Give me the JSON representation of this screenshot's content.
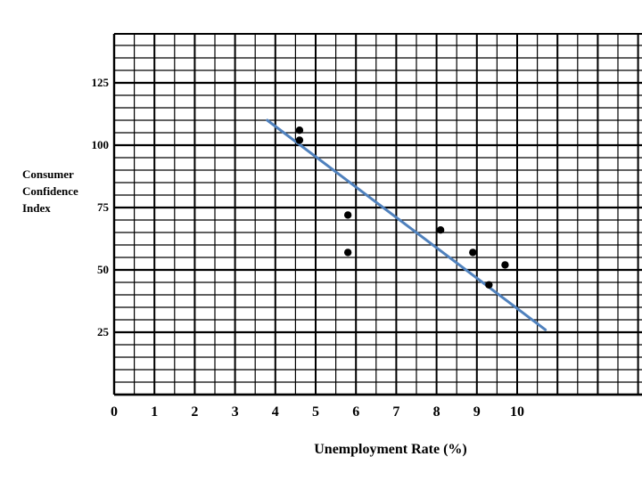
{
  "chart_data": {
    "type": "scatter",
    "title": "",
    "xlabel": "Unemployment Rate (%)",
    "ylabel_lines": [
      "Consumer",
      "Confidence",
      "Index"
    ],
    "xlim": [
      0,
      13
    ],
    "ylim": [
      0,
      143
    ],
    "x_ticks": [
      "0",
      "1",
      "2",
      "3",
      "4",
      "5",
      "6",
      "7",
      "8",
      "9",
      "10"
    ],
    "y_ticks": [
      "25",
      "50",
      "75",
      "100",
      "125"
    ],
    "grid": true,
    "legend": "none",
    "series": [
      {
        "points": [
          {
            "x": 4.6,
            "y": 106
          },
          {
            "x": 4.6,
            "y": 102
          },
          {
            "x": 5.8,
            "y": 72
          },
          {
            "x": 5.8,
            "y": 57
          },
          {
            "x": 8.1,
            "y": 66
          },
          {
            "x": 8.9,
            "y": 57
          },
          {
            "x": 9.3,
            "y": 44
          },
          {
            "x": 9.7,
            "y": 52
          }
        ]
      }
    ],
    "trend_line": {
      "from": {
        "x": 3.8,
        "y": 110
      },
      "to": {
        "x": 10.7,
        "y": 26
      }
    },
    "colors": {
      "points": "#000000",
      "trend_line": "#4f81bd",
      "grid": "#000000"
    }
  }
}
